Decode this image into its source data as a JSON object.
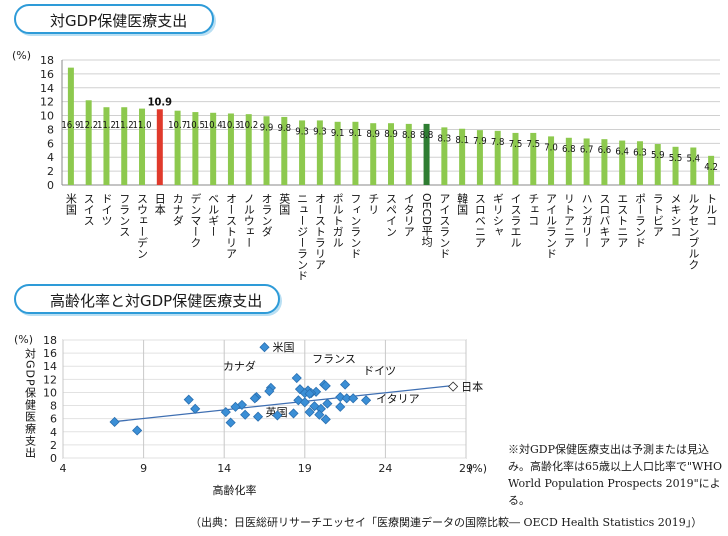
{
  "title1": "対GDP保健医療支出",
  "title2": "高齢化率と対GDP保健医療支出",
  "note": "※対GDP保健医療支出は予測または見込み。高齢化率は65歳以上人口比率で\"WHO World Population Prospects 2019\"による。",
  "source": "（出典：日医総研リサーチエッセイ「医療関連データの国際比較― OECD Health Statistics 2019」）",
  "colors": {
    "bar": "#8dc94e",
    "japan": "#e03a2c",
    "oecd": "#2e7d32",
    "point": "#3b8fd6",
    "trend": "#3f6fb2",
    "frame": "#2e9bd8"
  },
  "chart_data": [
    {
      "type": "bar",
      "ylabel": "(%)",
      "ylim": [
        0,
        18
      ],
      "yticks": [
        0,
        2,
        4,
        6,
        8,
        10,
        12,
        14,
        16,
        18
      ],
      "grid": true,
      "categories": [
        "米国",
        "スイス",
        "ドイツ",
        "フランス",
        "スウェーデン",
        "日本",
        "カナダ",
        "デンマーク",
        "ベルギー",
        "オーストリア",
        "ノルウェー",
        "オランダ",
        "英国",
        "ニュージーランド",
        "オーストラリア",
        "ポルトガル",
        "フィンランド",
        "チリ",
        "スペイン",
        "イタリア",
        "OECD平均",
        "アイスランド",
        "韓国",
        "スロベニア",
        "ギリシャ",
        "イスラエル",
        "チェコ",
        "アイルランド",
        "リトアニア",
        "ハンガリー",
        "スロバキア",
        "エストニア",
        "ポーランド",
        "ラトビア",
        "メキシコ",
        "ルクセンブルク",
        "トルコ"
      ],
      "values": [
        16.9,
        12.2,
        11.2,
        11.2,
        11.0,
        10.9,
        10.7,
        10.5,
        10.4,
        10.3,
        10.2,
        9.9,
        9.8,
        9.3,
        9.3,
        9.1,
        9.1,
        8.9,
        8.9,
        8.8,
        8.8,
        8.3,
        8.1,
        7.9,
        7.8,
        7.5,
        7.5,
        7.0,
        6.8,
        6.7,
        6.6,
        6.4,
        6.3,
        5.9,
        5.5,
        5.4,
        4.2
      ],
      "labels": [
        "16.9",
        "12.2",
        "11.2",
        "11.2",
        "11.0",
        "10.9",
        "10.7",
        "10.5",
        "10.4",
        "10.3",
        "10.2",
        "9.9",
        "9.8",
        "9.3",
        "9.3",
        "9.1",
        "9.1",
        "8.9",
        "8.9",
        "8.8",
        "8.8",
        "8.3",
        "8.1",
        "7.9",
        "7.8",
        "7.5",
        "7.5",
        "7.0",
        "6.8",
        "6.7",
        "6.6",
        "6.4",
        "6.3",
        "5.9",
        "5.5",
        "5.4",
        "4.2"
      ]
    },
    {
      "type": "scatter",
      "xlabel": "高齢化率",
      "ylabel": "対GDP保健医療支出",
      "xunit": "(%)",
      "yunit": "(%)",
      "xlim": [
        4,
        29
      ],
      "ylim": [
        0,
        18
      ],
      "xticks": [
        4,
        9,
        14,
        19,
        24,
        29
      ],
      "yticks": [
        0,
        2,
        4,
        6,
        8,
        10,
        12,
        14,
        16,
        18
      ],
      "grid": true,
      "trend": [
        [
          7,
          5.5
        ],
        [
          28,
          11
        ]
      ],
      "points": [
        [
          16.5,
          16.9,
          "米国"
        ],
        [
          28.2,
          10.9,
          "日本"
        ],
        [
          21.5,
          11.2,
          "ドイツ"
        ],
        [
          20.2,
          11.2,
          "フランス"
        ],
        [
          18.5,
          12.2,
          ""
        ],
        [
          18.7,
          10.5,
          ""
        ],
        [
          20.3,
          11.0,
          ""
        ],
        [
          16.9,
          10.7,
          "カナダ"
        ],
        [
          19.2,
          10.3,
          ""
        ],
        [
          19.0,
          9.9,
          ""
        ],
        [
          19.7,
          10.1,
          ""
        ],
        [
          16.8,
          10.2,
          ""
        ],
        [
          19.4,
          9.9,
          ""
        ],
        [
          19.3,
          9.8,
          "英国"
        ],
        [
          21.2,
          9.3,
          ""
        ],
        [
          21.6,
          9.1,
          ""
        ],
        [
          22.0,
          9.1,
          ""
        ],
        [
          22.8,
          8.8,
          "イタリア"
        ],
        [
          16.0,
          9.3,
          ""
        ],
        [
          15.9,
          9.1,
          ""
        ],
        [
          18.6,
          8.8,
          ""
        ],
        [
          19.0,
          8.5,
          ""
        ],
        [
          19.6,
          7.9,
          ""
        ],
        [
          20.4,
          8.3,
          ""
        ],
        [
          21.2,
          7.8,
          ""
        ],
        [
          20.0,
          7.5,
          ""
        ],
        [
          19.3,
          7.0,
          ""
        ],
        [
          19.9,
          6.6,
          ""
        ],
        [
          18.3,
          6.8,
          ""
        ],
        [
          16.1,
          6.3,
          ""
        ],
        [
          15.1,
          8.1,
          ""
        ],
        [
          14.7,
          7.8,
          ""
        ],
        [
          14.1,
          7.0,
          ""
        ],
        [
          15.3,
          6.6,
          ""
        ],
        [
          14.4,
          5.4,
          ""
        ],
        [
          11.8,
          8.9,
          ""
        ],
        [
          12.2,
          7.5,
          ""
        ],
        [
          20.3,
          5.9,
          ""
        ],
        [
          17.3,
          6.5,
          ""
        ],
        [
          7.2,
          5.5,
          ""
        ],
        [
          8.6,
          4.2,
          ""
        ]
      ]
    }
  ]
}
